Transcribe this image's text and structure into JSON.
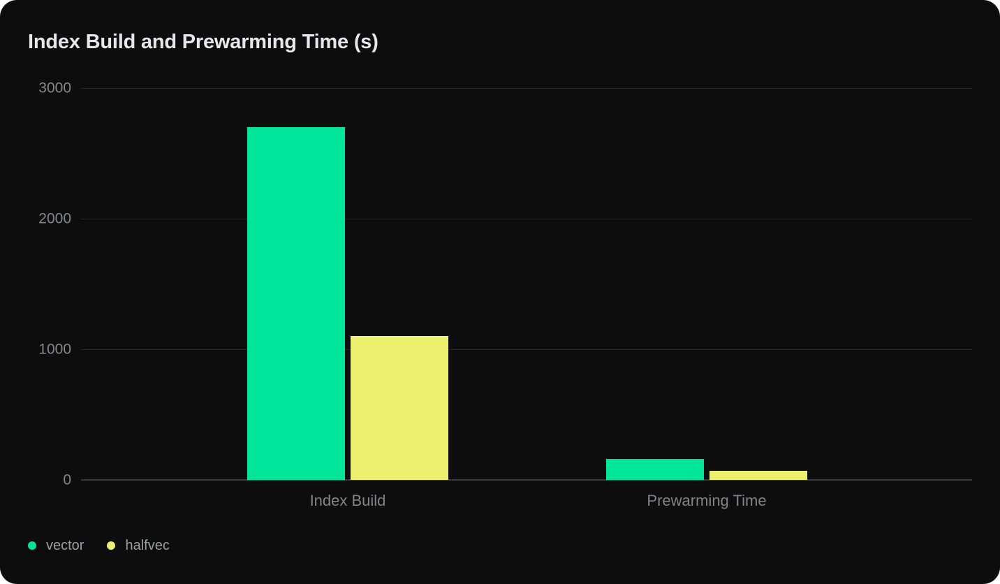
{
  "chart_data": {
    "type": "bar",
    "title": "Index Build and Prewarming Time (s)",
    "categories": [
      "Index Build",
      "Prewarming Time"
    ],
    "series": [
      {
        "name": "vector",
        "color": "#00e599",
        "values": [
          2700,
          160
        ]
      },
      {
        "name": "halfvec",
        "color": "#edf06f",
        "values": [
          1100,
          70
        ]
      }
    ],
    "ylim": [
      0,
      3000
    ],
    "yticks": [
      0,
      1000,
      2000,
      3000
    ],
    "xlabel": "",
    "ylabel": "",
    "unit": "s",
    "grid": true,
    "legend_position": "bottom-left"
  },
  "colors": {
    "card_background": "#0d0d0e",
    "page_background": "#ffffff",
    "title_text": "#e7e7e9",
    "tick_text": "#85868e",
    "category_text": "#82838b",
    "legend_text": "#9c9ea5",
    "gridline": "#29292c",
    "axis_line": "#3a3a3e"
  }
}
